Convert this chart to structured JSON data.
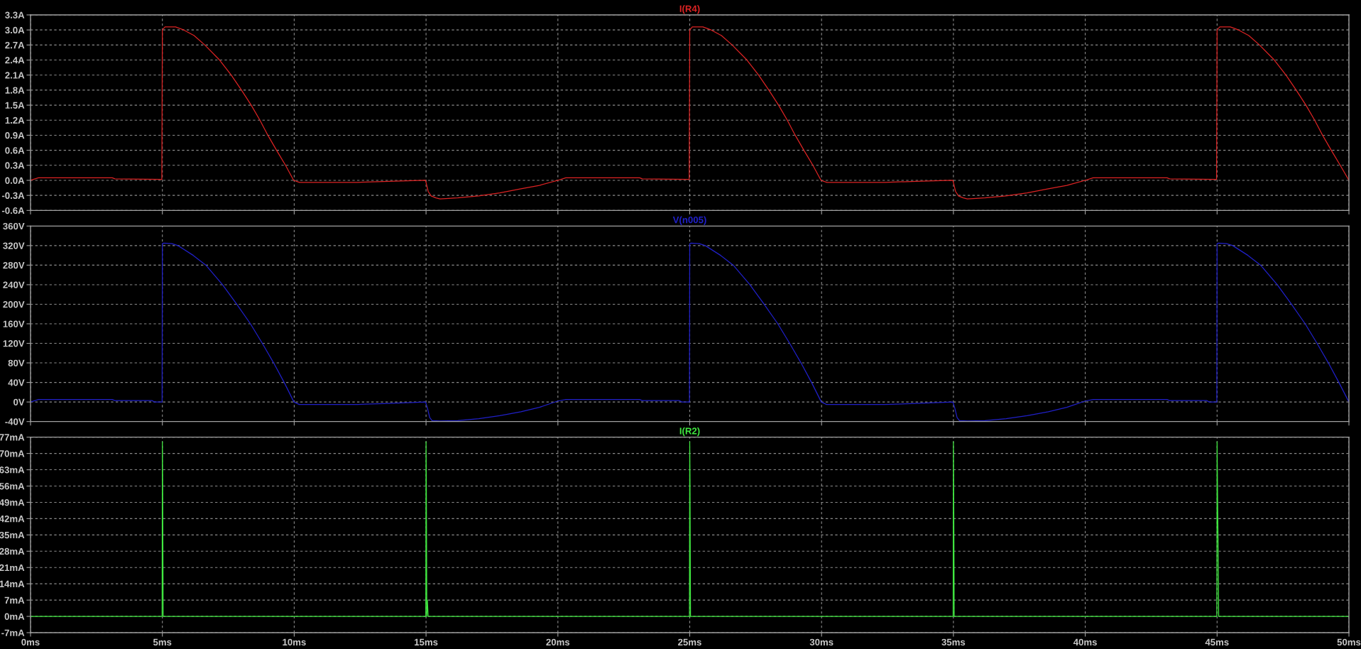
{
  "chart_data": [
    {
      "type": "line",
      "x": [
        0,
        0.3,
        3.1,
        3.2,
        4.98,
        5.0,
        5.1,
        5.5,
        5.81,
        6.2,
        6.61,
        7.17,
        7.61,
        8.0,
        8.37,
        8.7,
        9.0,
        9.33,
        9.67,
        9.98,
        10.2,
        12.4,
        13.6,
        14.98,
        15.08,
        15.19,
        15.37,
        15.53,
        16.2,
        17.0,
        17.8,
        18.6,
        19.3,
        20.0,
        20.3,
        23.1,
        23.2,
        24.98,
        25.0,
        25.1,
        25.5,
        25.81,
        26.2,
        26.61,
        27.17,
        27.61,
        28.0,
        28.37,
        28.7,
        29.0,
        29.33,
        29.67,
        29.98,
        30.2,
        32.4,
        33.6,
        34.98,
        35.08,
        35.19,
        35.37,
        35.53,
        36.2,
        37.0,
        37.8,
        38.6,
        39.3,
        40.0,
        40.3,
        43.1,
        43.2,
        44.98,
        45.0,
        45.1,
        45.5,
        45.81,
        46.2,
        46.61,
        47.17,
        47.61,
        48.0,
        48.37,
        48.7,
        49.0,
        49.33,
        49.67,
        50.0
      ],
      "series": [
        {
          "name": "I(R4)",
          "color": "#dc2323",
          "values": [
            0.0,
            0.05,
            0.05,
            0.03,
            0.02,
            3.0,
            3.06,
            3.06,
            3.0,
            2.89,
            2.7,
            2.4,
            2.1,
            1.8,
            1.5,
            1.2,
            0.9,
            0.6,
            0.3,
            0.0,
            -0.04,
            -0.04,
            -0.02,
            0.0,
            -0.22,
            -0.31,
            -0.35,
            -0.37,
            -0.35,
            -0.31,
            -0.25,
            -0.17,
            -0.1,
            0.0,
            0.05,
            0.05,
            0.03,
            0.02,
            3.0,
            3.06,
            3.06,
            3.0,
            2.89,
            2.7,
            2.4,
            2.1,
            1.8,
            1.5,
            1.2,
            0.9,
            0.6,
            0.3,
            0.0,
            -0.04,
            -0.04,
            -0.02,
            0.0,
            -0.22,
            -0.31,
            -0.35,
            -0.37,
            -0.35,
            -0.31,
            -0.25,
            -0.17,
            -0.1,
            0.0,
            0.05,
            0.05,
            0.03,
            0.02,
            3.0,
            3.06,
            3.06,
            3.0,
            2.89,
            2.7,
            2.4,
            2.1,
            1.8,
            1.5,
            1.2,
            0.9,
            0.6,
            0.3,
            0.0
          ]
        }
      ],
      "xlim": [
        0,
        50
      ],
      "xticks": [
        {
          "value": 0,
          "label": null
        },
        {
          "value": 5,
          "label": null
        },
        {
          "value": 10,
          "label": null
        },
        {
          "value": 15,
          "label": null
        },
        {
          "value": 20,
          "label": null
        },
        {
          "value": 25,
          "label": null
        },
        {
          "value": 30,
          "label": null
        },
        {
          "value": 35,
          "label": null
        },
        {
          "value": 40,
          "label": null
        },
        {
          "value": 45,
          "label": null
        },
        {
          "value": 50,
          "label": null
        }
      ],
      "ylim": [
        -0.6,
        3.3
      ],
      "yticks": [
        {
          "value": -0.6,
          "label": "-0.6A"
        },
        {
          "value": -0.3,
          "label": "-0.3A"
        },
        {
          "value": 0.0,
          "label": "0.0A"
        },
        {
          "value": 0.3,
          "label": "0.3A"
        },
        {
          "value": 0.6,
          "label": "0.6A"
        },
        {
          "value": 0.9,
          "label": "0.9A"
        },
        {
          "value": 1.2,
          "label": "1.2A"
        },
        {
          "value": 1.5,
          "label": "1.5A"
        },
        {
          "value": 1.8,
          "label": "1.8A"
        },
        {
          "value": 2.1,
          "label": "2.1A"
        },
        {
          "value": 2.4,
          "label": "2.4A"
        },
        {
          "value": 2.7,
          "label": "2.7A"
        },
        {
          "value": 3.0,
          "label": "3.0A"
        },
        {
          "value": 3.3,
          "label": "3.3A"
        }
      ],
      "grid": true,
      "tick_labels": "y",
      "line_style": "solid"
    },
    {
      "type": "line",
      "x": [
        0,
        0.3,
        3.1,
        3.2,
        4.6,
        4.7,
        4.99,
        5.0,
        5.05,
        5.36,
        5.59,
        6.17,
        6.65,
        7.28,
        7.82,
        8.34,
        8.79,
        9.22,
        9.62,
        9.99,
        10.19,
        12.4,
        13.6,
        14.98,
        15.05,
        15.14,
        15.23,
        15.53,
        16.2,
        17.0,
        17.8,
        18.6,
        19.3,
        20.0,
        20.3,
        23.1,
        23.2,
        24.6,
        24.7,
        24.99,
        25.0,
        25.05,
        25.36,
        25.59,
        26.17,
        26.65,
        27.28,
        27.82,
        28.34,
        28.79,
        29.22,
        29.62,
        29.99,
        30.19,
        32.4,
        33.6,
        34.98,
        35.05,
        35.14,
        35.23,
        35.53,
        36.2,
        37.0,
        37.8,
        38.6,
        39.3,
        40.0,
        40.3,
        43.1,
        43.2,
        44.6,
        44.7,
        44.99,
        45.0,
        45.05,
        45.36,
        45.59,
        46.17,
        46.65,
        47.28,
        47.82,
        48.34,
        48.79,
        49.22,
        49.62,
        50.0
      ],
      "series": [
        {
          "name": "V(n005)",
          "color": "#2020c8",
          "values": [
            0,
            5,
            5,
            3,
            3,
            0,
            0,
            324,
            325,
            324,
            320,
            300,
            280,
            240,
            200,
            160,
            120,
            80,
            40,
            0,
            -5,
            -5,
            -3,
            0,
            -12,
            -32,
            -38,
            -39,
            -38,
            -34,
            -28,
            -20,
            -11,
            2,
            5,
            5,
            3,
            3,
            0,
            0,
            324,
            325,
            324,
            320,
            300,
            280,
            240,
            200,
            160,
            120,
            80,
            40,
            0,
            -5,
            -5,
            -3,
            0,
            -12,
            -32,
            -38,
            -39,
            -38,
            -34,
            -28,
            -20,
            -11,
            2,
            5,
            5,
            3,
            3,
            0,
            0,
            324,
            325,
            324,
            320,
            300,
            280,
            240,
            200,
            160,
            120,
            80,
            40,
            0
          ]
        }
      ],
      "xlim": [
        0,
        50
      ],
      "xticks": [
        {
          "value": 0,
          "label": null
        },
        {
          "value": 5,
          "label": null
        },
        {
          "value": 10,
          "label": null
        },
        {
          "value": 15,
          "label": null
        },
        {
          "value": 20,
          "label": null
        },
        {
          "value": 25,
          "label": null
        },
        {
          "value": 30,
          "label": null
        },
        {
          "value": 35,
          "label": null
        },
        {
          "value": 40,
          "label": null
        },
        {
          "value": 45,
          "label": null
        },
        {
          "value": 50,
          "label": null
        }
      ],
      "ylim": [
        -40,
        360
      ],
      "yticks": [
        {
          "value": -40,
          "label": "-40V"
        },
        {
          "value": 0,
          "label": "0V"
        },
        {
          "value": 40,
          "label": "40V"
        },
        {
          "value": 80,
          "label": "80V"
        },
        {
          "value": 120,
          "label": "120V"
        },
        {
          "value": 160,
          "label": "160V"
        },
        {
          "value": 200,
          "label": "200V"
        },
        {
          "value": 240,
          "label": "240V"
        },
        {
          "value": 280,
          "label": "280V"
        },
        {
          "value": 320,
          "label": "320V"
        },
        {
          "value": 360,
          "label": "360V"
        }
      ],
      "grid": true,
      "tick_labels": "y",
      "line_style": "solid"
    },
    {
      "type": "line",
      "x": [
        0,
        4.99,
        5.0,
        5.01,
        5.03,
        14.99,
        15.0,
        15.01,
        15.03,
        15.05,
        15.08,
        24.99,
        25.0,
        25.01,
        25.03,
        34.99,
        35.0,
        35.01,
        35.03,
        44.99,
        45.0,
        45.02,
        45.04,
        45.06,
        50
      ],
      "series": [
        {
          "name": "I(R2)",
          "color": "#40e840",
          "values": [
            0,
            0,
            75,
            60,
            0,
            0,
            75,
            60,
            0,
            7,
            0,
            0,
            75,
            59,
            0,
            0,
            75,
            60,
            0,
            0,
            75,
            50,
            29,
            0,
            0
          ]
        }
      ],
      "xlim": [
        0,
        50
      ],
      "xticks": [
        {
          "value": 0,
          "label": "0ms"
        },
        {
          "value": 5,
          "label": "5ms"
        },
        {
          "value": 10,
          "label": "10ms"
        },
        {
          "value": 15,
          "label": "15ms"
        },
        {
          "value": 20,
          "label": "20ms"
        },
        {
          "value": 25,
          "label": "25ms"
        },
        {
          "value": 30,
          "label": "30ms"
        },
        {
          "value": 35,
          "label": "35ms"
        },
        {
          "value": 40,
          "label": "40ms"
        },
        {
          "value": 45,
          "label": "45ms"
        },
        {
          "value": 50,
          "label": "50ms"
        }
      ],
      "ylim": [
        -7,
        77
      ],
      "yticks": [
        {
          "value": -7,
          "label": "-7mA"
        },
        {
          "value": 0,
          "label": "0mA"
        },
        {
          "value": 7,
          "label": "7mA"
        },
        {
          "value": 14,
          "label": "14mA"
        },
        {
          "value": 21,
          "label": "21mA"
        },
        {
          "value": 28,
          "label": "28mA"
        },
        {
          "value": 35,
          "label": "35mA"
        },
        {
          "value": 42,
          "label": "42mA"
        },
        {
          "value": 49,
          "label": "49mA"
        },
        {
          "value": 56,
          "label": "56mA"
        },
        {
          "value": 63,
          "label": "63mA"
        },
        {
          "value": 70,
          "label": "70mA"
        },
        {
          "value": 77,
          "label": "77mA"
        }
      ],
      "grid": true,
      "line_style": "solid"
    }
  ]
}
